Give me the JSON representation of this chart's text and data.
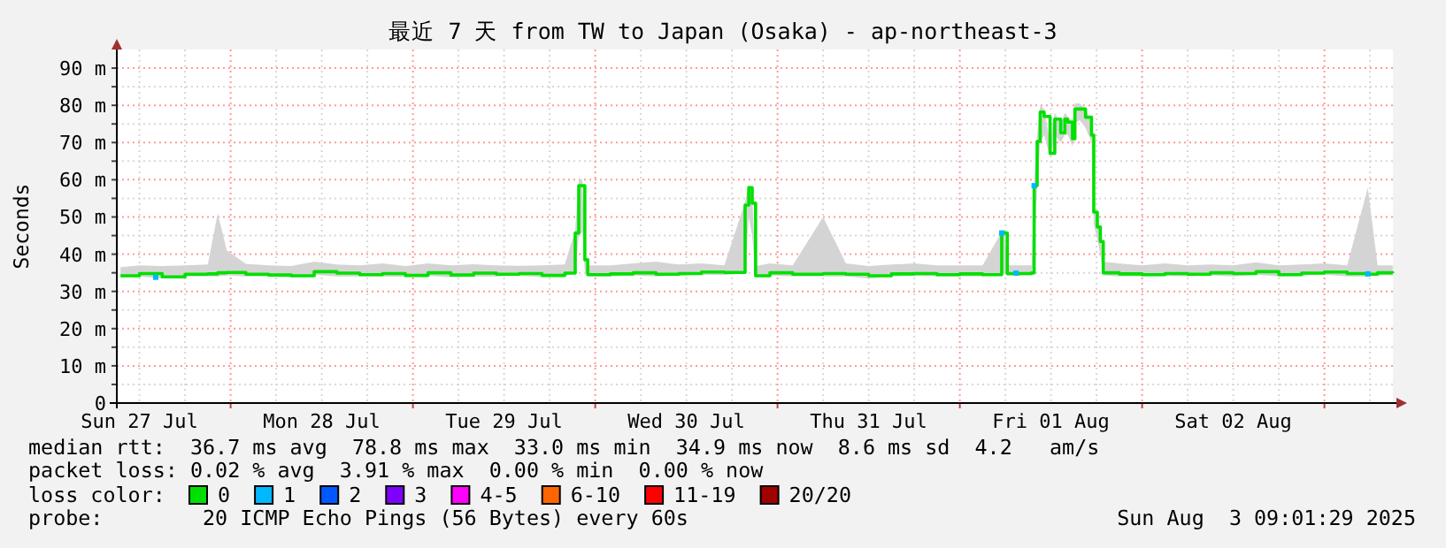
{
  "chart_data": {
    "type": "step",
    "title": "最近 7 天 from TW to Japan (Osaka) - ap-northeast-3",
    "ylabel": "Seconds",
    "legend_title": "loss color:",
    "legend": "bottom",
    "grid": true,
    "line_style": "solid",
    "xlim": [
      "2025-07-27T09:01",
      "2025-08-03T09:01"
    ],
    "ylim": [
      0,
      95
    ],
    "yticks": [
      0,
      {
        "value": 5,
        "label": null
      },
      {
        "value": 10,
        "label": "10 m"
      },
      {
        "value": 15,
        "label": null
      },
      {
        "value": 20,
        "label": "20 m"
      },
      {
        "value": 25,
        "label": null
      },
      {
        "value": 30,
        "label": "30 m"
      },
      {
        "value": 35,
        "label": null
      },
      {
        "value": 40,
        "label": "40 m"
      },
      {
        "value": 45,
        "label": null
      },
      {
        "value": 50,
        "label": "50 m"
      },
      {
        "value": 55,
        "label": null
      },
      {
        "value": 60,
        "label": "60 m"
      },
      {
        "value": 65,
        "label": null
      },
      {
        "value": 70,
        "label": "70 m"
      },
      {
        "value": 75,
        "label": null
      },
      {
        "value": 80,
        "label": "80 m"
      },
      {
        "value": 85,
        "label": null
      },
      {
        "value": 90,
        "label": "90 m"
      }
    ],
    "xticks": [
      {
        "value": "2025-07-27T12:00",
        "label": "Sun 27 Jul"
      },
      {
        "value": "2025-07-27T18:00",
        "label": null
      },
      {
        "value": "2025-07-28T00:00",
        "label": null
      },
      {
        "value": "2025-07-28T06:00",
        "label": null
      },
      {
        "value": "2025-07-28T12:00",
        "label": "Mon 28 Jul"
      },
      {
        "value": "2025-07-28T18:00",
        "label": null
      },
      {
        "value": "2025-07-29T00:00",
        "label": null
      },
      {
        "value": "2025-07-29T06:00",
        "label": null
      },
      {
        "value": "2025-07-29T12:00",
        "label": "Tue 29 Jul"
      },
      {
        "value": "2025-07-29T18:00",
        "label": null
      },
      {
        "value": "2025-07-30T00:00",
        "label": null
      },
      {
        "value": "2025-07-30T06:00",
        "label": null
      },
      {
        "value": "2025-07-30T12:00",
        "label": "Wed 30 Jul"
      },
      {
        "value": "2025-07-30T18:00",
        "label": null
      },
      {
        "value": "2025-07-31T00:00",
        "label": null
      },
      {
        "value": "2025-07-31T06:00",
        "label": null
      },
      {
        "value": "2025-07-31T12:00",
        "label": "Thu 31 Jul"
      },
      {
        "value": "2025-07-31T18:00",
        "label": null
      },
      {
        "value": "2025-08-01T00:00",
        "label": null
      },
      {
        "value": "2025-08-01T06:00",
        "label": null
      },
      {
        "value": "2025-08-01T12:00",
        "label": "Fri 01 Aug"
      },
      {
        "value": "2025-08-01T18:00",
        "label": null
      },
      {
        "value": "2025-08-02T00:00",
        "label": null
      },
      {
        "value": "2025-08-02T06:00",
        "label": null
      },
      {
        "value": "2025-08-02T12:00",
        "label": "Sat 02 Aug"
      },
      {
        "value": "2025-08-02T18:00",
        "label": null
      },
      {
        "value": "2025-08-03T00:00",
        "label": null
      },
      {
        "value": "2025-08-03T06:00",
        "label": null
      }
    ],
    "x": [
      "2025-07-27T09:30",
      "2025-07-27T12:00",
      "2025-07-27T15:00",
      "2025-07-27T18:00",
      "2025-07-27T21:00",
      "2025-07-27T22:18",
      "2025-07-27T23:30",
      "2025-07-28T02:00",
      "2025-07-28T05:00",
      "2025-07-28T08:00",
      "2025-07-28T11:00",
      "2025-07-28T14:00",
      "2025-07-28T17:00",
      "2025-07-28T20:00",
      "2025-07-28T23:00",
      "2025-07-29T02:00",
      "2025-07-29T05:00",
      "2025-07-29T08:00",
      "2025-07-29T11:00",
      "2025-07-29T14:00",
      "2025-07-29T17:00",
      "2025-07-29T20:00",
      "2025-07-29T21:22",
      "2025-07-29T21:50",
      "2025-07-29T22:19",
      "2025-07-29T22:38",
      "2025-07-29T23:01",
      "2025-07-30T02:00",
      "2025-07-30T05:00",
      "2025-07-30T08:00",
      "2025-07-30T11:00",
      "2025-07-30T14:00",
      "2025-07-30T17:00",
      "2025-07-30T19:44",
      "2025-07-30T20:13",
      "2025-07-30T20:40",
      "2025-07-30T21:07",
      "2025-07-30T23:00",
      "2025-07-31T02:00",
      "2025-07-31T06:00",
      "2025-07-31T09:00",
      "2025-07-31T12:00",
      "2025-07-31T15:00",
      "2025-07-31T18:00",
      "2025-07-31T21:00",
      "2025-08-01T00:00",
      "2025-08-01T03:00",
      "2025-08-01T05:31",
      "2025-08-01T05:52",
      "2025-08-01T06:15",
      "2025-08-01T09:28",
      "2025-08-01T09:47",
      "2025-08-01T10:11",
      "2025-08-01T10:35",
      "2025-08-01T11:06",
      "2025-08-01T11:53",
      "2025-08-01T12:30",
      "2025-08-01T13:17",
      "2025-08-01T13:50",
      "2025-08-01T14:13",
      "2025-08-01T14:50",
      "2025-08-01T15:09",
      "2025-08-01T15:46",
      "2025-08-01T16:33",
      "2025-08-01T17:20",
      "2025-08-01T17:38",
      "2025-08-01T18:06",
      "2025-08-01T18:30",
      "2025-08-01T18:53",
      "2025-08-01T21:00",
      "2025-08-02T00:00",
      "2025-08-02T03:00",
      "2025-08-02T06:00",
      "2025-08-02T09:00",
      "2025-08-02T12:00",
      "2025-08-02T15:00",
      "2025-08-02T18:00",
      "2025-08-02T21:00",
      "2025-08-03T00:00",
      "2025-08-03T03:00",
      "2025-08-03T05:43",
      "2025-08-03T07:00",
      "2025-08-03T09:00"
    ],
    "series": [
      {
        "name": "0",
        "color": "#00e000",
        "values": [
          34.2,
          34.8,
          33.9,
          34.6,
          34.7,
          35,
          35.1,
          34.6,
          34.4,
          34.2,
          35.3,
          34.9,
          34.5,
          34.8,
          34.3,
          35,
          34.4,
          34.9,
          34.6,
          34.8,
          34.3,
          34.9,
          45.7,
          58.4,
          58.4,
          38.5,
          34.5,
          34.7,
          35,
          34.6,
          34.8,
          35.2,
          35.1,
          53.2,
          57.9,
          53.7,
          34.2,
          35,
          34.6,
          34.8,
          34.6,
          34.2,
          34.7,
          34.8,
          34.5,
          34.7,
          34.5,
          45.7,
          45.7,
          34.8,
          35,
          58.4,
          70.3,
          78.2,
          77,
          67.1,
          76.3,
          72.6,
          76.3,
          75.5,
          71,
          79,
          79,
          76.8,
          72,
          51.3,
          47.3,
          43.4,
          35,
          34.7,
          34.5,
          34.8,
          34.6,
          35,
          34.8,
          35.3,
          34.5,
          34.9,
          35.2,
          34.8,
          34.6,
          35,
          34.9
        ],
        "lower": [
          33.8,
          34,
          33.5,
          34,
          34,
          34,
          34.3,
          34,
          34,
          33.8,
          34.5,
          34,
          34,
          34,
          33.9,
          34.2,
          33.8,
          34,
          34,
          34.2,
          33.9,
          34.2,
          35,
          45,
          46,
          35,
          34,
          34,
          34.3,
          34,
          34.2,
          34.5,
          34.4,
          35,
          50,
          45,
          33.8,
          34.3,
          34,
          34,
          34,
          33.5,
          34,
          34.2,
          34,
          34,
          34,
          35,
          35,
          34.2,
          34.3,
          40,
          58,
          70,
          72,
          66,
          72,
          70,
          72,
          72,
          69,
          75,
          76,
          74,
          70,
          48,
          44,
          40,
          34.3,
          34,
          34,
          34.2,
          34,
          34.3,
          34,
          34.5,
          34,
          34.2,
          34.5,
          34,
          34,
          34.3,
          34.3
        ],
        "upper": [
          36.5,
          37,
          36.8,
          37,
          37.2,
          51,
          41,
          37.4,
          37,
          36.8,
          38,
          37.2,
          37,
          37.5,
          36.8,
          37.5,
          37,
          37.3,
          37,
          36.9,
          37,
          37.2,
          46.5,
          60,
          60,
          40,
          37,
          37,
          37.5,
          38,
          37.2,
          37.5,
          37,
          54,
          59,
          55,
          36.8,
          37.5,
          37,
          50,
          37.5,
          36.8,
          37.2,
          37.5,
          37,
          37,
          37,
          46,
          46,
          37,
          37,
          60,
          72,
          80,
          79,
          70,
          78,
          75,
          78,
          77,
          74,
          80.5,
          80.5,
          79,
          75,
          54,
          49,
          45,
          38,
          37.5,
          37,
          37.5,
          37,
          37.2,
          37,
          37.8,
          37,
          37.2,
          37.5,
          37,
          57.9,
          37,
          37
        ]
      },
      {
        "name": "1",
        "type": "scatter",
        "marker": "square",
        "color": "#00b8ff",
        "x": [
          "2025-07-27T14:08",
          "2025-08-01T05:31",
          "2025-08-01T07:24",
          "2025-08-01T09:47",
          "2025-08-03T05:43"
        ],
        "values": [
          33.8,
          45.7,
          34.9,
          58.4,
          34.7
        ]
      },
      {
        "name": "2",
        "type": "scatter",
        "marker": "square",
        "color": "#0059ff",
        "values": [
          null,
          null,
          null,
          null,
          null,
          null,
          null,
          null,
          null,
          null,
          null,
          null,
          null,
          null,
          null,
          null,
          null,
          null,
          null,
          null,
          null,
          null,
          null,
          null,
          null,
          null,
          null,
          null,
          null,
          null,
          null,
          null,
          null,
          null,
          null,
          null,
          null,
          null,
          null,
          null,
          null,
          null,
          null,
          null,
          null,
          null,
          null,
          null,
          null,
          null,
          null,
          null,
          null,
          null,
          null,
          null,
          null,
          null,
          null,
          null,
          null,
          null,
          null,
          null,
          null,
          null,
          null,
          null,
          null,
          null,
          null,
          null,
          null,
          null,
          null,
          null,
          null,
          null,
          null,
          null,
          null,
          null,
          null
        ]
      },
      {
        "name": "3",
        "type": "scatter",
        "marker": "square",
        "color": "#8000ff",
        "values": [
          null,
          null,
          null,
          null,
          null,
          null,
          null,
          null,
          null,
          null,
          null,
          null,
          null,
          null,
          null,
          null,
          null,
          null,
          null,
          null,
          null,
          null,
          null,
          null,
          null,
          null,
          null,
          null,
          null,
          null,
          null,
          null,
          null,
          null,
          null,
          null,
          null,
          null,
          null,
          null,
          null,
          null,
          null,
          null,
          null,
          null,
          null,
          null,
          null,
          null,
          null,
          null,
          null,
          null,
          null,
          null,
          null,
          null,
          null,
          null,
          null,
          null,
          null,
          null,
          null,
          null,
          null,
          null,
          null,
          null,
          null,
          null,
          null,
          null,
          null,
          null,
          null,
          null,
          null,
          null,
          null,
          null,
          null
        ]
      },
      {
        "name": "4-5",
        "type": "scatter",
        "marker": "square",
        "color": "#ff00ff",
        "values": [
          null,
          null,
          null,
          null,
          null,
          null,
          null,
          null,
          null,
          null,
          null,
          null,
          null,
          null,
          null,
          null,
          null,
          null,
          null,
          null,
          null,
          null,
          null,
          null,
          null,
          null,
          null,
          null,
          null,
          null,
          null,
          null,
          null,
          null,
          null,
          null,
          null,
          null,
          null,
          null,
          null,
          null,
          null,
          null,
          null,
          null,
          null,
          null,
          null,
          null,
          null,
          null,
          null,
          null,
          null,
          null,
          null,
          null,
          null,
          null,
          null,
          null,
          null,
          null,
          null,
          null,
          null,
          null,
          null,
          null,
          null,
          null,
          null,
          null,
          null,
          null,
          null,
          null,
          null,
          null,
          null,
          null,
          null
        ]
      },
      {
        "name": "6-10",
        "type": "scatter",
        "marker": "square",
        "color": "#ff6600",
        "values": [
          null,
          null,
          null,
          null,
          null,
          null,
          null,
          null,
          null,
          null,
          null,
          null,
          null,
          null,
          null,
          null,
          null,
          null,
          null,
          null,
          null,
          null,
          null,
          null,
          null,
          null,
          null,
          null,
          null,
          null,
          null,
          null,
          null,
          null,
          null,
          null,
          null,
          null,
          null,
          null,
          null,
          null,
          null,
          null,
          null,
          null,
          null,
          null,
          null,
          null,
          null,
          null,
          null,
          null,
          null,
          null,
          null,
          null,
          null,
          null,
          null,
          null,
          null,
          null,
          null,
          null,
          null,
          null,
          null,
          null,
          null,
          null,
          null,
          null,
          null,
          null,
          null,
          null,
          null,
          null,
          null,
          null,
          null
        ]
      },
      {
        "name": "11-19",
        "type": "scatter",
        "marker": "square",
        "color": "#ff0000",
        "values": [
          null,
          null,
          null,
          null,
          null,
          null,
          null,
          null,
          null,
          null,
          null,
          null,
          null,
          null,
          null,
          null,
          null,
          null,
          null,
          null,
          null,
          null,
          null,
          null,
          null,
          null,
          null,
          null,
          null,
          null,
          null,
          null,
          null,
          null,
          null,
          null,
          null,
          null,
          null,
          null,
          null,
          null,
          null,
          null,
          null,
          null,
          null,
          null,
          null,
          null,
          null,
          null,
          null,
          null,
          null,
          null,
          null,
          null,
          null,
          null,
          null,
          null,
          null,
          null,
          null,
          null,
          null,
          null,
          null,
          null,
          null,
          null,
          null,
          null,
          null,
          null,
          null,
          null,
          null,
          null,
          null,
          null,
          null
        ]
      },
      {
        "name": "20/20",
        "type": "scatter",
        "marker": "square",
        "color": "#a10000",
        "values": [
          null,
          null,
          null,
          null,
          null,
          null,
          null,
          null,
          null,
          null,
          null,
          null,
          null,
          null,
          null,
          null,
          null,
          null,
          null,
          null,
          null,
          null,
          null,
          null,
          null,
          null,
          null,
          null,
          null,
          null,
          null,
          null,
          null,
          null,
          null,
          null,
          null,
          null,
          null,
          null,
          null,
          null,
          null,
          null,
          null,
          null,
          null,
          null,
          null,
          null,
          null,
          null,
          null,
          null,
          null,
          null,
          null,
          null,
          null,
          null,
          null,
          null,
          null,
          null,
          null,
          null,
          null,
          null,
          null,
          null,
          null,
          null,
          null,
          null,
          null,
          null,
          null,
          null,
          null,
          null,
          null,
          null,
          null
        ]
      }
    ],
    "annotations": [
      "median rtt:  36.7 ms avg  78.8 ms max  33.0 ms min  34.9 ms now  8.6 ms sd  4.2   am/s",
      "packet loss: 0.02 % avg  3.91 % max  0.00 % min  0.00 % now",
      "probe:        20 ICMP Echo Pings (56 Bytes) every 60s",
      "Sun Aug  3 09:01:29 2025"
    ]
  }
}
